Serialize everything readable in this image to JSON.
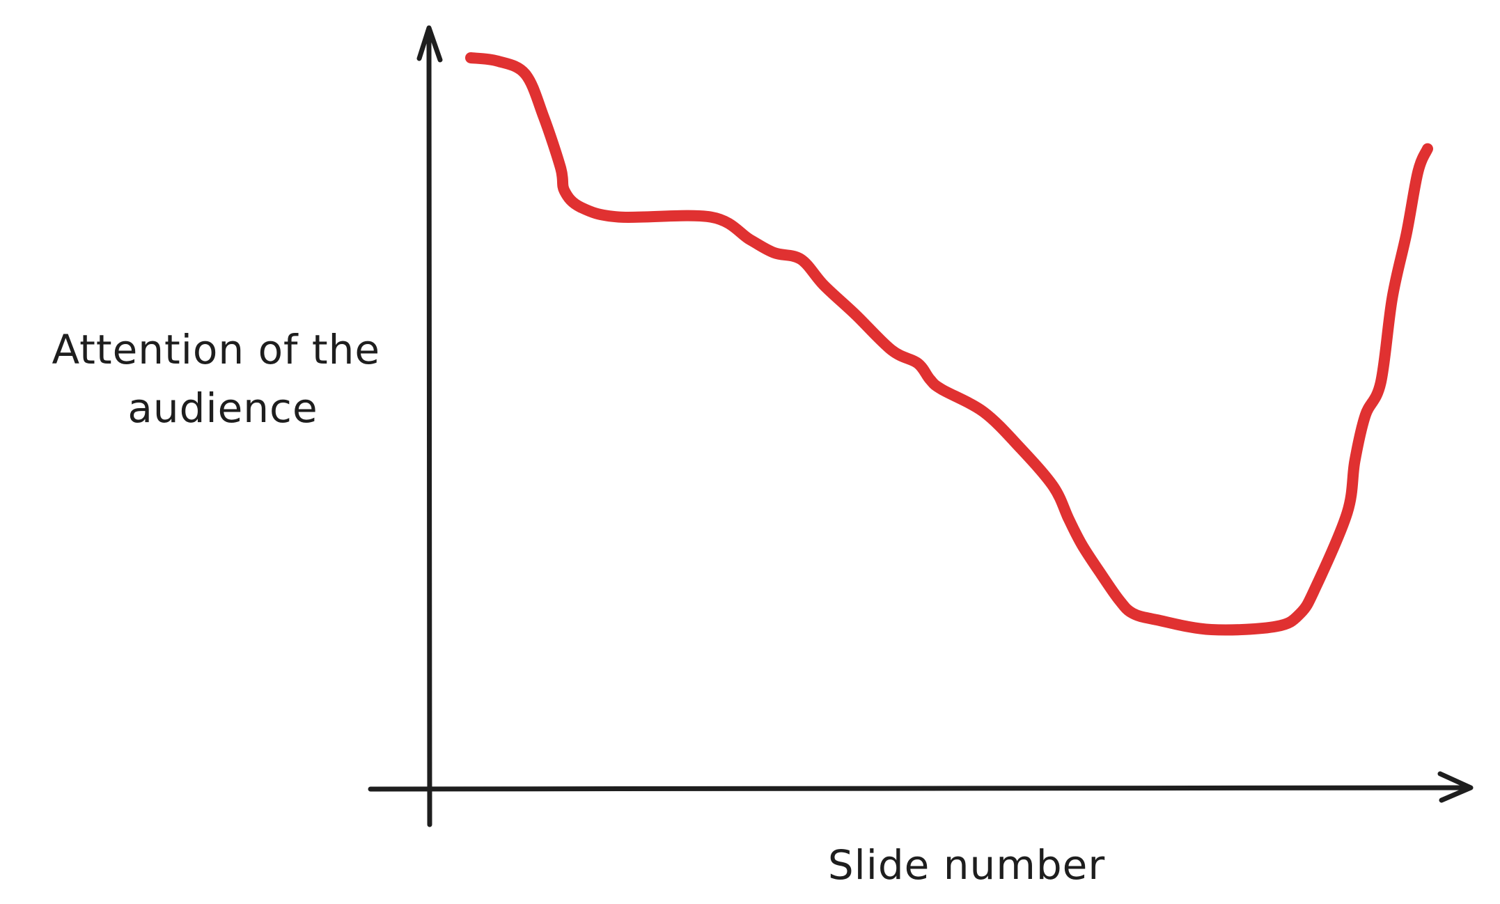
{
  "chart_data": {
    "type": "line",
    "ylabel_lines": [
      "Attention of the",
      "audience"
    ],
    "xlabel": "Slide number",
    "xlim": [
      0,
      100
    ],
    "ylim": [
      0,
      100
    ],
    "grid": false,
    "axis_color": "#1e1e1e",
    "series": [
      {
        "color": "#e03131",
        "x": [
          0,
          2.8,
          5.7,
          7.6,
          9.4,
          9.8,
          11.5,
          15.5,
          25.1,
          29.2,
          31.7,
          34.5,
          36.9,
          40.2,
          44.0,
          46.7,
          48.0,
          49.2,
          53.6,
          57.4,
          60.9,
          62.5,
          63.9,
          65.9,
          67.8,
          69.2,
          71.7,
          77.4,
          84.2,
          86.7,
          88.3,
          91.6,
          92.4,
          93.5,
          95.1,
          96.3,
          97.8,
          99.0,
          100.0
        ],
        "y": [
          100,
          99.5,
          97.5,
          91.0,
          83.0,
          79.5,
          77.0,
          75.5,
          75.5,
          72.0,
          70.0,
          69.0,
          65.0,
          60.5,
          55.0,
          53.0,
          50.5,
          49.0,
          45.5,
          40.0,
          34.0,
          29.0,
          25.0,
          20.5,
          16.5,
          14.5,
          13.5,
          12.0,
          12.5,
          14.5,
          18.5,
          30.0,
          38.0,
          45.0,
          50.0,
          63.0,
          73.0,
          82.5,
          86.0
        ]
      }
    ]
  }
}
